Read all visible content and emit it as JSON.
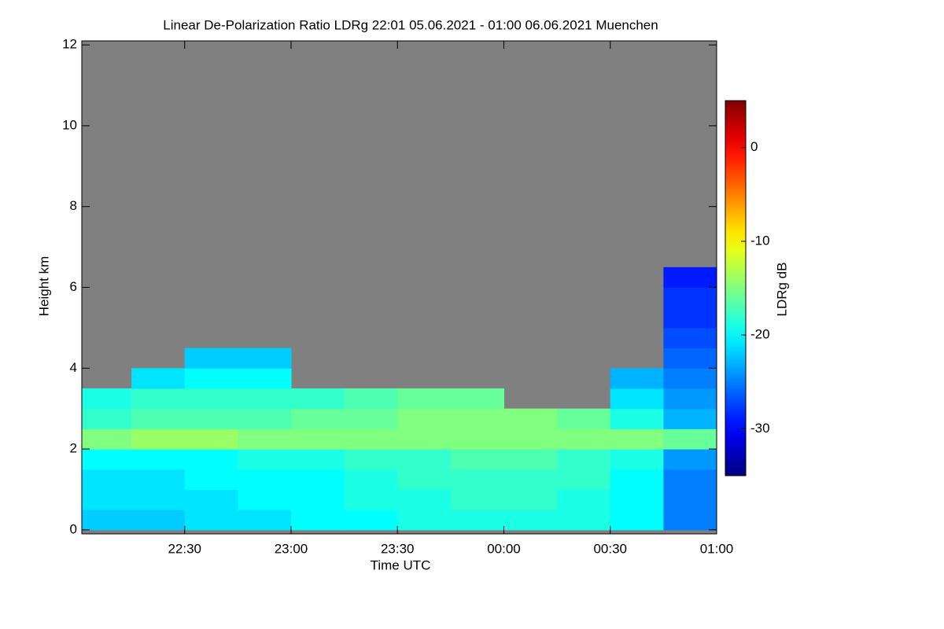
{
  "chart_data": {
    "type": "heatmap",
    "title": "Linear De-Polarization Ratio LDRg   22:01 05.06.2021 - 01:00 06.06.2021 Muenchen",
    "x_label": "Time UTC",
    "y_label": "Height km",
    "colorbar_label": "LDRg dB",
    "xlim": [
      "22:01",
      "01:00"
    ],
    "xticks": [
      "22:30",
      "23:00",
      "23:30",
      "00:00",
      "00:30",
      "01:00"
    ],
    "ylim": [
      -0.1,
      12.1
    ],
    "yticks": [
      0,
      2,
      4,
      6,
      8,
      10,
      12
    ],
    "zlim": [
      -35,
      5
    ],
    "zticks": [
      0,
      -10,
      -20,
      -30
    ],
    "no_data_color": "#808080",
    "x_bins": [
      "22:01",
      "22:15",
      "22:30",
      "22:45",
      "23:00",
      "23:15",
      "23:30",
      "23:45",
      "00:00",
      "00:15",
      "00:30",
      "00:45",
      "01:00"
    ],
    "y_bins": [
      0,
      0.5,
      1,
      1.5,
      2,
      2.5,
      3,
      3.5,
      4,
      4.5,
      5,
      5.5,
      6,
      6.5
    ],
    "z": [
      [
        -22,
        -22,
        -21,
        -21,
        -20,
        -20,
        -19,
        -19,
        -19,
        -19,
        -20,
        -25
      ],
      [
        -21,
        -21,
        -21,
        -20,
        -20,
        -19,
        -19,
        -18,
        -18,
        -19,
        -20,
        -25
      ],
      [
        -21,
        -21,
        -20,
        -20,
        -20,
        -19,
        -18,
        -18,
        -18,
        -18,
        -20,
        -25
      ],
      [
        -20,
        -20,
        -20,
        -19,
        -19,
        -18,
        -18,
        -17,
        -17,
        -18,
        -19,
        -24
      ],
      [
        -15,
        -14,
        -14,
        -15,
        -15,
        -15,
        -15,
        -15,
        -15,
        -15,
        -15,
        -16
      ],
      [
        -18,
        -17,
        -17,
        -17,
        -16,
        -16,
        -15,
        -15,
        -15,
        -16,
        -19,
        -23
      ],
      [
        -19,
        -18,
        -18,
        -18,
        -18,
        -17,
        -16,
        -16,
        null,
        null,
        -21,
        -24
      ],
      [
        null,
        -21,
        -20,
        -20,
        null,
        null,
        null,
        null,
        null,
        null,
        -23,
        -25
      ],
      [
        null,
        null,
        -22,
        -22,
        null,
        null,
        null,
        null,
        null,
        null,
        null,
        -26
      ],
      [
        null,
        null,
        null,
        null,
        null,
        null,
        null,
        null,
        null,
        null,
        null,
        -27
      ],
      [
        null,
        null,
        null,
        null,
        null,
        null,
        null,
        null,
        null,
        null,
        null,
        -28
      ],
      [
        null,
        null,
        null,
        null,
        null,
        null,
        null,
        null,
        null,
        null,
        null,
        -28
      ],
      [
        null,
        null,
        null,
        null,
        null,
        null,
        null,
        null,
        null,
        null,
        null,
        -29
      ]
    ]
  }
}
